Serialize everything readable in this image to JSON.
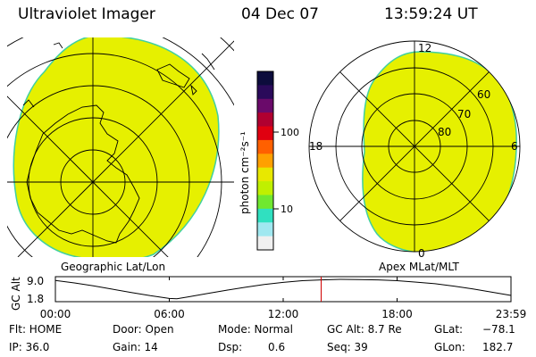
{
  "header": {
    "title": "Ultraviolet Imager",
    "date": "04 Dec 07",
    "time": "13:59:24 UT"
  },
  "colorbar": {
    "unit_label": "photon cm⁻²s⁻¹",
    "ticks": [
      {
        "label": "100",
        "value": 100
      },
      {
        "label": "10",
        "value": 10
      }
    ],
    "colors": [
      "#0c0c3c",
      "#2a0a5a",
      "#6a0a6a",
      "#b00030",
      "#e00010",
      "#ff6000",
      "#ffa000",
      "#e8e800",
      "#c0f000",
      "#70e830",
      "#30e0c0",
      "#a0e8f0",
      "#f0f0f0"
    ]
  },
  "panels": {
    "left": {
      "caption": "Geographic Lat/Lon",
      "fill_color": "#e6f000"
    },
    "right": {
      "caption": "Apex MLat/MLT",
      "fill_color": "#e6f000",
      "mlt_labels": [
        "12",
        "18",
        "6",
        "0"
      ],
      "lat_labels": [
        "60",
        "70",
        "80"
      ]
    }
  },
  "chart_data": {
    "type": "line",
    "title": "",
    "ylabel": "GC Alt",
    "y_ticks": [
      "9.0",
      "1.8"
    ],
    "ylim": [
      1.8,
      9.0
    ],
    "x_ticks": [
      "00:00",
      "06:00",
      "12:00",
      "18:00",
      "23:59"
    ],
    "xlim_hours": [
      0,
      24
    ],
    "current_time_hours": 14.0,
    "series": [
      {
        "x": [
          0,
          1,
          2,
          3,
          4,
          5,
          6,
          6.4,
          7,
          8,
          9,
          10,
          11,
          12,
          13,
          14,
          15,
          16,
          17,
          18,
          19,
          20,
          21,
          22,
          23,
          24
        ],
        "y": [
          8.6,
          7.7,
          6.6,
          5.4,
          4.2,
          3.0,
          2.0,
          1.9,
          2.6,
          3.8,
          5.0,
          6.1,
          7.1,
          7.9,
          8.5,
          8.8,
          9.0,
          8.9,
          8.8,
          8.5,
          8.0,
          7.4,
          6.5,
          5.5,
          4.3,
          3.1
        ]
      }
    ]
  },
  "info": {
    "flt": "Flt: HOME",
    "ip": "IP: 36.0",
    "door": "Door: Open",
    "gain": "Gain: 14",
    "mode": "Mode: Normal",
    "dsp_label": "Dsp:",
    "dsp_value": "0.6",
    "gc_alt": "GC Alt: 8.7 Re",
    "seq": "Seq: 39",
    "glat_label": "GLat:",
    "glat_value": "−78.1",
    "glon_label": "GLon:",
    "glon_value": "182.7"
  }
}
